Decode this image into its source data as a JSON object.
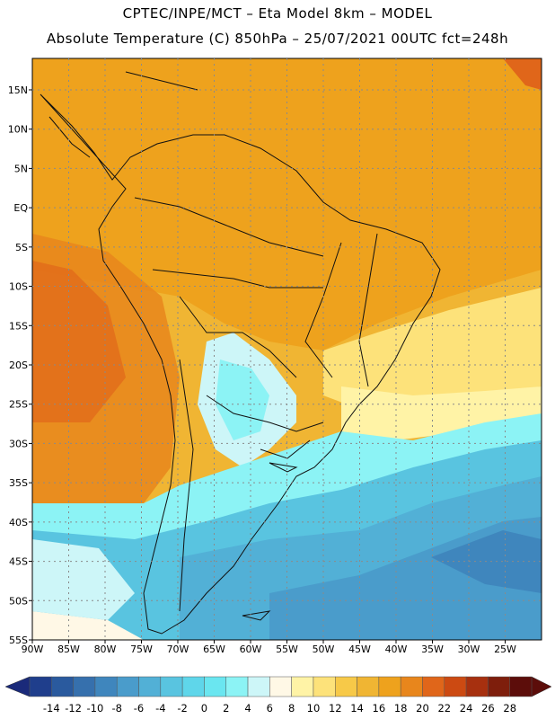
{
  "header": {
    "line1": "CPTEC/INPE/MCT –  Eta Model 8km – MODEL",
    "line2": "Absolute Temperature (C) 850hPa – 25/07/2021 00UTC fct=248h"
  },
  "map": {
    "lat_labels": [
      "15N",
      "10N",
      "5N",
      "EQ",
      "5S",
      "10S",
      "15S",
      "20S",
      "25S",
      "30S",
      "35S",
      "40S",
      "45S",
      "50S",
      "55S"
    ],
    "lat_values": [
      15,
      10,
      5,
      0,
      -5,
      -10,
      -15,
      -20,
      -25,
      -30,
      -35,
      -40,
      -45,
      -50,
      -55
    ],
    "lon_labels": [
      "90W",
      "85W",
      "80W",
      "75W",
      "70W",
      "65W",
      "60W",
      "55W",
      "50W",
      "45W",
      "40W",
      "35W",
      "30W",
      "25W"
    ],
    "lon_values": [
      -90,
      -85,
      -80,
      -75,
      -70,
      -65,
      -60,
      -55,
      -50,
      -45,
      -40,
      -35,
      -30,
      -25
    ],
    "extent": {
      "lon_min": -90,
      "lon_max": -20,
      "lat_min": -55,
      "lat_max": 19
    }
  },
  "colorbar": {
    "labels": [
      "-14",
      "-12",
      "-10",
      "-8",
      "-6",
      "-4",
      "-2",
      "0",
      "2",
      "4",
      "6",
      "8",
      "10",
      "12",
      "14",
      "16",
      "18",
      "20",
      "22",
      "24",
      "26",
      "28"
    ],
    "colors": [
      "#1f3e8c",
      "#2a5a9e",
      "#3670ad",
      "#3f86bd",
      "#4a9ccb",
      "#52b0d6",
      "#59c4e0",
      "#5fd6ea",
      "#6ae6f0",
      "#8cf3f5",
      "#cdf6f8",
      "#fff8e6",
      "#fff3a6",
      "#fde27a",
      "#f7c948",
      "#f0b533",
      "#eea21d",
      "#e8861c",
      "#e0661a",
      "#cc4a12",
      "#a7300f",
      "#7e1e0c",
      "#5c0d0a"
    ],
    "left_arrow_color": "#1a2a7a",
    "right_arrow_color": "#5c0d0a"
  }
}
